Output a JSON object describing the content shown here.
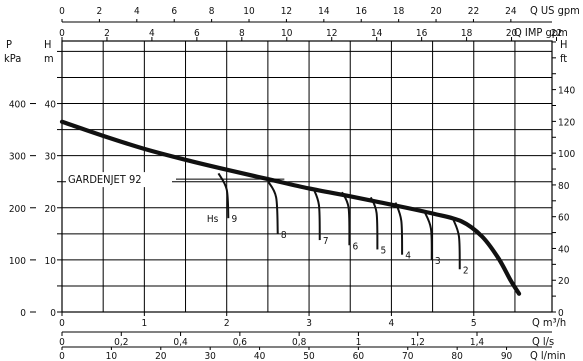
{
  "chart_data": {
    "type": "line",
    "title": "GARDENJET 92",
    "axes": {
      "pressure_kpa": {
        "label_top": "P",
        "label_bottom": "kPa",
        "ticks": [
          0,
          100,
          200,
          300,
          400
        ],
        "range": [
          0,
          520
        ]
      },
      "head_m": {
        "label_top": "H",
        "label_bottom": "m",
        "ticks": [
          0,
          10,
          20,
          30,
          40
        ],
        "range": [
          0,
          52
        ]
      },
      "head_ft": {
        "label_top": "H",
        "label_bottom": "ft",
        "ticks": [
          0,
          20,
          40,
          60,
          80,
          100,
          120,
          140
        ],
        "range": [
          0,
          170.6
        ]
      },
      "flow_m3h": {
        "label": "Q m³/h",
        "ticks": [
          0,
          1,
          2,
          3,
          4,
          5
        ],
        "range": [
          0,
          5.95
        ]
      },
      "flow_ls": {
        "label": "Q l/s",
        "ticks": [
          "0",
          "0,2",
          "0,4",
          "0,6",
          "0,8",
          "1",
          "1,2",
          "1,4"
        ],
        "tick_values": [
          0,
          0.2,
          0.4,
          0.6,
          0.8,
          1,
          1.2,
          1.4
        ],
        "range": [
          0,
          1.653
        ]
      },
      "flow_lmin": {
        "label": "Q l/min",
        "ticks": [
          0,
          10,
          20,
          30,
          40,
          50,
          60,
          70,
          80,
          90
        ],
        "range": [
          0,
          99.2
        ]
      },
      "flow_usgpm": {
        "label": "Q US gpm",
        "ticks": [
          0,
          2,
          4,
          6,
          8,
          10,
          12,
          14,
          16,
          18,
          20,
          22,
          24
        ],
        "range": [
          0,
          26.2
        ]
      },
      "flow_impgpm": {
        "label": "Q IMP gpm",
        "ticks": [
          0,
          2,
          4,
          6,
          8,
          10,
          12,
          14,
          16,
          18,
          20,
          22
        ],
        "range": [
          0,
          21.8
        ]
      }
    },
    "series": [
      {
        "name": "H",
        "x_m3h": [
          0,
          0.5,
          1,
          1.5,
          2,
          2.5,
          3,
          3.5,
          4,
          4.5,
          4.85,
          5.1,
          5.3,
          5.45,
          5.55
        ],
        "y_m": [
          36.5,
          33.8,
          31.3,
          29.2,
          27.3,
          25.5,
          23.7,
          22.2,
          20.6,
          18.9,
          17.4,
          14.5,
          10.3,
          6.0,
          3.5
        ]
      }
    ],
    "npsh_curves": [
      {
        "label": "Hs",
        "label_num": "9",
        "x_m3h": [
          1.9,
          2.0,
          2.02
        ],
        "y_m": [
          26.6,
          23.5,
          18.0
        ]
      },
      {
        "label": "",
        "label_num": "8",
        "x_m3h": [
          2.5,
          2.6,
          2.62
        ],
        "y_m": [
          25.1,
          22.0,
          15.0
        ]
      },
      {
        "label": "",
        "label_num": "7",
        "x_m3h": [
          3.05,
          3.12,
          3.13
        ],
        "y_m": [
          23.8,
          20.5,
          13.8
        ]
      },
      {
        "label": "",
        "label_num": "6",
        "x_m3h": [
          3.4,
          3.48,
          3.49
        ],
        "y_m": [
          23.0,
          20.0,
          12.8
        ]
      },
      {
        "label": "",
        "label_num": "5",
        "x_m3h": [
          3.75,
          3.82,
          3.83
        ],
        "y_m": [
          22.0,
          19.0,
          12.0
        ]
      },
      {
        "label": "",
        "label_num": "4",
        "x_m3h": [
          4.05,
          4.12,
          4.13
        ],
        "y_m": [
          21.0,
          17.5,
          11.0
        ]
      },
      {
        "label": "",
        "label_num": "3",
        "x_m3h": [
          4.4,
          4.48,
          4.49
        ],
        "y_m": [
          19.3,
          16.0,
          10.0
        ]
      },
      {
        "label": "",
        "label_num": "2",
        "x_m3h": [
          4.75,
          4.82,
          4.83
        ],
        "y_m": [
          17.8,
          14.5,
          8.2
        ]
      }
    ]
  }
}
